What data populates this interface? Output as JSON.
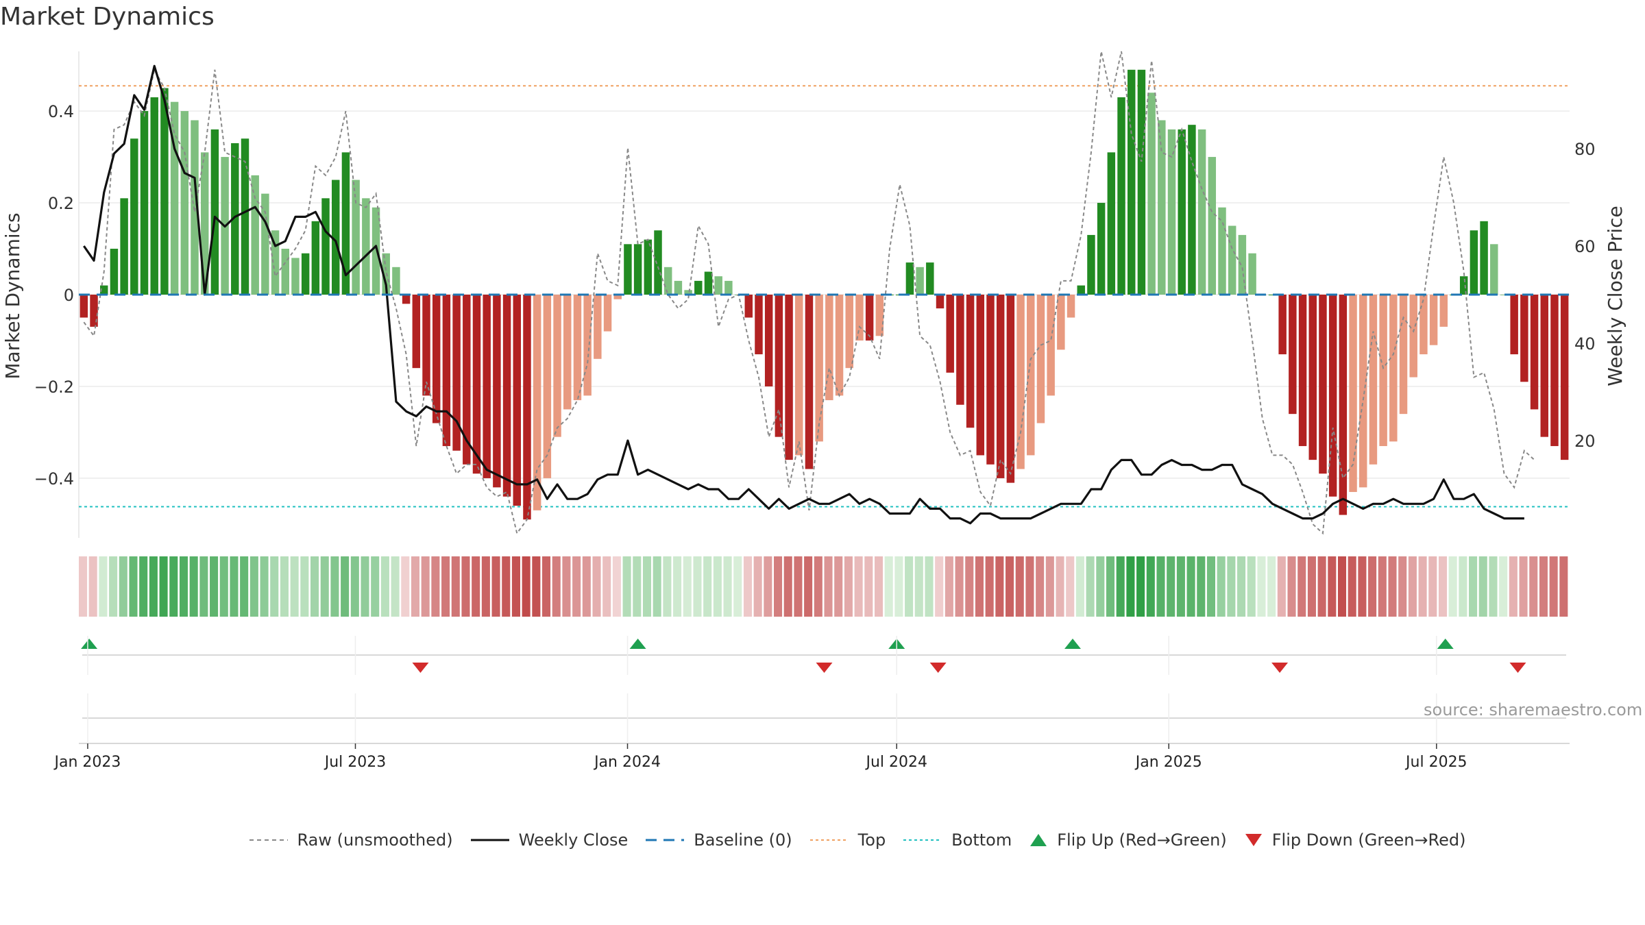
{
  "chart_data": {
    "title": "Market Dynamics",
    "type": "bar",
    "ylabel_left": "Market Dynamics",
    "ylabel_right": "Weekly Close Price",
    "ylim_left": [
      -0.53,
      0.53
    ],
    "ylim_right": [
      0,
      100
    ],
    "yticks_left": [
      "0.4",
      "0.2",
      "0",
      "−0.2",
      "−0.4"
    ],
    "yticks_left_values": [
      0.4,
      0.2,
      0,
      -0.2,
      -0.4
    ],
    "yticks_right": [
      "80",
      "60",
      "40",
      "20"
    ],
    "yticks_right_values": [
      80,
      60,
      40,
      20
    ],
    "x_start": "2022-12-26",
    "x_end": "2025-09-29",
    "xticks": [
      {
        "date": "2023-01-01",
        "label": "Jan 2023"
      },
      {
        "date": "2023-07-01",
        "label": "Jul 2023"
      },
      {
        "date": "2024-01-01",
        "label": "Jan 2024"
      },
      {
        "date": "2024-07-01",
        "label": "Jul 2024"
      },
      {
        "date": "2025-01-01",
        "label": "Jan 2025"
      },
      {
        "date": "2025-07-01",
        "label": "Jul 2025"
      }
    ],
    "top_line": 0.455,
    "bottom_line": -0.462,
    "baseline": 0,
    "series": [
      {
        "name": "Market Dynamics (smoothed)",
        "type": "bar",
        "values": [
          -0.05,
          -0.07,
          0.02,
          0.1,
          0.21,
          0.34,
          0.4,
          0.43,
          0.45,
          0.42,
          0.4,
          0.38,
          0.31,
          0.36,
          0.3,
          0.33,
          0.34,
          0.26,
          0.22,
          0.14,
          0.1,
          0.08,
          0.09,
          0.16,
          0.21,
          0.25,
          0.31,
          0.25,
          0.21,
          0.19,
          0.09,
          0.06,
          -0.02,
          -0.16,
          -0.22,
          -0.28,
          -0.33,
          -0.34,
          -0.37,
          -0.39,
          -0.4,
          -0.42,
          -0.44,
          -0.46,
          -0.49,
          -0.47,
          -0.4,
          -0.31,
          -0.25,
          -0.23,
          -0.22,
          -0.14,
          -0.08,
          -0.01,
          0.11,
          0.11,
          0.12,
          0.14,
          0.06,
          0.03,
          0.01,
          0.03,
          0.05,
          0.04,
          0.03,
          0.0,
          -0.05,
          -0.13,
          -0.2,
          -0.31,
          -0.36,
          -0.35,
          -0.38,
          -0.32,
          -0.23,
          -0.22,
          -0.16,
          -0.1,
          -0.1,
          -0.09,
          0.0,
          0.0,
          0.07,
          0.06,
          0.07,
          -0.03,
          -0.17,
          -0.24,
          -0.29,
          -0.35,
          -0.37,
          -0.4,
          -0.41,
          -0.38,
          -0.35,
          -0.28,
          -0.22,
          -0.12,
          -0.05,
          0.02,
          0.13,
          0.2,
          0.31,
          0.43,
          0.49,
          0.49,
          0.44,
          0.38,
          0.36,
          0.36,
          0.37,
          0.36,
          0.3,
          0.19,
          0.15,
          0.13,
          0.09,
          0.0,
          0.0,
          -0.13,
          -0.26,
          -0.33,
          -0.36,
          -0.39,
          -0.44,
          -0.48,
          -0.43,
          -0.42,
          -0.37,
          -0.33,
          -0.32,
          -0.26,
          -0.18,
          -0.13,
          -0.11,
          -0.07,
          0.0,
          0.04,
          0.14,
          0.16,
          0.11,
          0.0,
          -0.13,
          -0.19,
          -0.25,
          -0.31,
          -0.33,
          -0.36
        ]
      },
      {
        "name": "Raw (unsmoothed)",
        "type": "line",
        "values": [
          -0.06,
          -0.09,
          0.05,
          0.36,
          0.37,
          0.42,
          0.39,
          0.49,
          0.45,
          0.35,
          0.31,
          0.18,
          0.31,
          0.49,
          0.31,
          0.3,
          0.29,
          0.21,
          0.18,
          0.04,
          0.07,
          0.1,
          0.14,
          0.28,
          0.26,
          0.3,
          0.4,
          0.2,
          0.19,
          0.22,
          0.05,
          -0.03,
          -0.13,
          -0.33,
          -0.19,
          -0.26,
          -0.33,
          -0.39,
          -0.37,
          -0.37,
          -0.42,
          -0.44,
          -0.43,
          -0.52,
          -0.49,
          -0.38,
          -0.35,
          -0.29,
          -0.27,
          -0.23,
          -0.15,
          0.09,
          0.03,
          0.02,
          0.32,
          0.11,
          0.12,
          0.06,
          0.0,
          -0.03,
          -0.01,
          0.15,
          0.11,
          -0.07,
          -0.01,
          0.0,
          -0.1,
          -0.18,
          -0.31,
          -0.25,
          -0.42,
          -0.32,
          -0.47,
          -0.28,
          -0.16,
          -0.22,
          -0.18,
          -0.07,
          -0.09,
          -0.14,
          0.1,
          0.24,
          0.15,
          -0.09,
          -0.11,
          -0.19,
          -0.3,
          -0.35,
          -0.34,
          -0.43,
          -0.46,
          -0.36,
          -0.39,
          -0.3,
          -0.14,
          -0.11,
          -0.1,
          0.03,
          0.03,
          0.13,
          0.31,
          0.53,
          0.43,
          0.53,
          0.35,
          0.29,
          0.51,
          0.31,
          0.3,
          0.36,
          0.29,
          0.23,
          0.18,
          0.16,
          0.1,
          0.06,
          -0.1,
          -0.27,
          -0.35,
          -0.35,
          -0.37,
          -0.43,
          -0.5,
          -0.52,
          -0.29,
          -0.4,
          -0.37,
          -0.23,
          -0.08,
          -0.16,
          -0.13,
          -0.05,
          -0.08,
          -0.01,
          0.15,
          0.3,
          0.2,
          0.05,
          -0.18,
          -0.17,
          -0.25,
          -0.39,
          -0.42,
          -0.34,
          -0.36
        ]
      },
      {
        "name": "Weekly Close",
        "type": "line",
        "axis": "right",
        "values": [
          60,
          57,
          71,
          79,
          81,
          91,
          88,
          97,
          90,
          80,
          75,
          74,
          50,
          66,
          64,
          66,
          67,
          68,
          65,
          60,
          61,
          66,
          66,
          67,
          63,
          61,
          54,
          56,
          58,
          60,
          52,
          28,
          26,
          25,
          27,
          26,
          26,
          24,
          20,
          17,
          14,
          13,
          12,
          11,
          11,
          12,
          8,
          11,
          8,
          8,
          9,
          12,
          13,
          13,
          20,
          13,
          14,
          13,
          12,
          11,
          10,
          11,
          10,
          10,
          8,
          8,
          10,
          8,
          6,
          8,
          6,
          7,
          8,
          7,
          7,
          8,
          9,
          7,
          8,
          7,
          5,
          5,
          5,
          8,
          6,
          6,
          4,
          4,
          3,
          5,
          5,
          4,
          4,
          4,
          4,
          5,
          6,
          7,
          7,
          7,
          10,
          10,
          14,
          16,
          16,
          13,
          13,
          15,
          16,
          15,
          15,
          14,
          14,
          15,
          15,
          11,
          10,
          9,
          7,
          6,
          5,
          4,
          4,
          5,
          7,
          8,
          7,
          6,
          7,
          7,
          8,
          7,
          7,
          7,
          8,
          12,
          8,
          8,
          9,
          6,
          5,
          4,
          4,
          4
        ]
      },
      {
        "name": "Baseline (0)",
        "type": "line",
        "value": 0
      },
      {
        "name": "Top",
        "type": "line",
        "value": 0.455
      },
      {
        "name": "Bottom",
        "type": "line",
        "value": -0.462
      }
    ],
    "flips_up": [
      "2023-01-02",
      "2024-01-08",
      "2024-07-01",
      "2024-10-28",
      "2025-07-07"
    ],
    "flips_down": [
      "2023-08-14",
      "2024-05-13",
      "2024-07-29",
      "2025-03-17",
      "2025-08-25"
    ],
    "legend": {
      "raw": "Raw (unsmoothed)",
      "close": "Weekly Close",
      "baseline": "Baseline (0)",
      "top": "Top",
      "bottom": "Bottom",
      "flip_up": "Flip Up (Red→Green)",
      "flip_down": "Flip Down (Green→Red)"
    },
    "source": "source: sharemaestro.com"
  },
  "colors": {
    "pos_strong": "#228b22",
    "pos_weak": "#7fbf7f",
    "neg_strong": "#b22222",
    "neg_weak": "#e89a80",
    "raw": "#888888",
    "close": "#111111",
    "baseline": "#1f77b4",
    "top": "#f0a060",
    "bottom": "#20c0c0",
    "flip_up": "#1fa050",
    "flip_down": "#d22b2b",
    "grid": "#ebebeb"
  }
}
